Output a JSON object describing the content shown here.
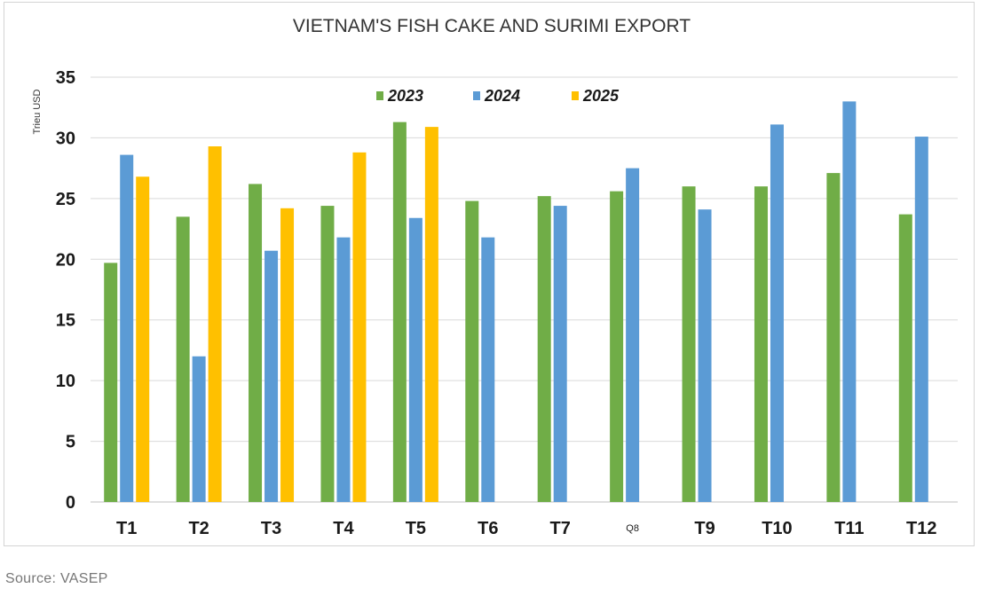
{
  "source": "Source: VASEP",
  "chart_data": {
    "type": "bar",
    "title": "VIETNAM'S FISH CAKE AND SURIMI EXPORT",
    "ylabel": "Trieu USD",
    "xlabel": "",
    "ylim": [
      0,
      35
    ],
    "yticks": [
      0,
      5,
      10,
      15,
      20,
      25,
      30,
      35
    ],
    "grid": true,
    "legend_position": "top-center",
    "categories": [
      "T1",
      "T2",
      "T3",
      "T4",
      "T5",
      "T6",
      "T7",
      "Q8",
      "T9",
      "T10",
      "T11",
      "T12"
    ],
    "series": [
      {
        "name": "2023",
        "color": "#70ad47",
        "values": [
          19.7,
          23.5,
          26.2,
          24.4,
          31.3,
          24.8,
          25.2,
          25.6,
          26.0,
          26.0,
          27.1,
          23.7
        ]
      },
      {
        "name": "2024",
        "color": "#5b9bd5",
        "values": [
          28.6,
          12.0,
          20.7,
          21.8,
          23.4,
          21.8,
          24.4,
          27.5,
          24.1,
          31.1,
          33.0,
          30.1
        ]
      },
      {
        "name": "2025",
        "color": "#ffc000",
        "values": [
          26.8,
          29.3,
          24.2,
          28.8,
          30.9,
          null,
          null,
          null,
          null,
          null,
          null,
          null
        ]
      }
    ]
  }
}
